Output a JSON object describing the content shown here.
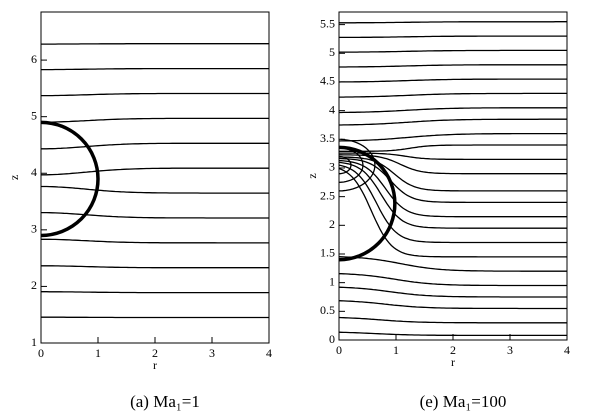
{
  "chart_data": [
    {
      "type": "contour",
      "xlabel": "r",
      "ylabel": "z",
      "caption": "(a) Ma₁=1",
      "xlim": [
        0,
        4
      ],
      "ylim": [
        1,
        6.85
      ],
      "xticks": [
        0,
        1,
        2,
        3,
        4
      ],
      "yticks": [
        1,
        2,
        3,
        4,
        5,
        6
      ]
    },
    {
      "type": "contour",
      "xlabel": "r",
      "ylabel": "z",
      "caption": "(e) Ma₁=100",
      "xlim": [
        0,
        4
      ],
      "ylim": [
        0,
        5.72
      ],
      "xticks": [
        0,
        1,
        2,
        3,
        4
      ],
      "yticks": [
        0,
        0.5,
        1,
        1.5,
        2,
        2.5,
        3,
        3.5,
        4,
        4.5,
        5,
        5.5
      ]
    }
  ]
}
